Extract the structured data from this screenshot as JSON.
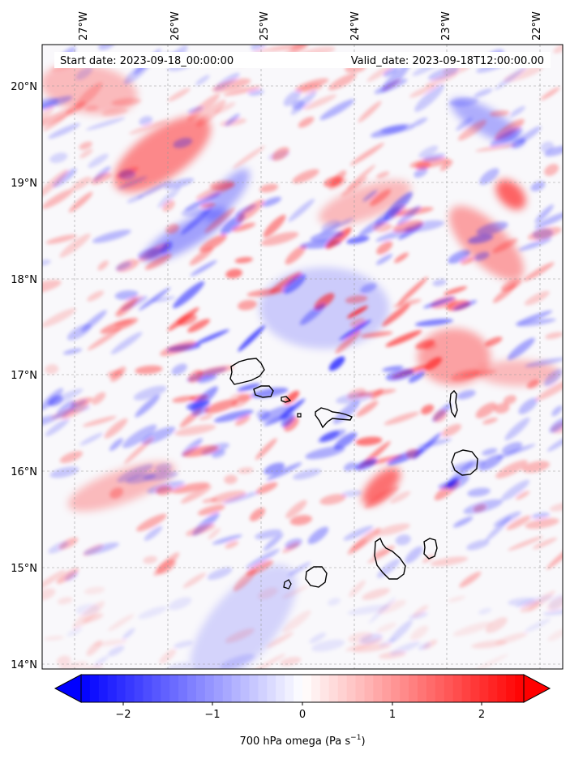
{
  "header": {
    "start_date": "Start date: 2023-09-18_00:00:00",
    "valid_date": "Valid_date: 2023-09-18T12:00:00.00"
  },
  "axes": {
    "lon_labels": [
      "27°W",
      "26°W",
      "25°W",
      "24°W",
      "23°W",
      "22°W"
    ],
    "lat_labels": [
      "20°N",
      "19°N",
      "18°N",
      "17°N",
      "16°N",
      "15°N",
      "14°N"
    ],
    "lon_range": [
      -27.35,
      -21.8
    ],
    "lat_range": [
      13.95,
      20.4
    ]
  },
  "colorbar": {
    "ticks": [
      "−2",
      "−1",
      "0",
      "1",
      "2"
    ],
    "label": "700 hPa omega (Pa s",
    "label_sup": "−1",
    "label_close": ")",
    "range": [
      -2.5,
      2.5
    ],
    "cmap": "bwr",
    "extend": "both"
  },
  "colors": {
    "positive": "#ff0000",
    "negative": "#0000ff",
    "neutral": "#ffffff",
    "coast": "#000000"
  }
}
